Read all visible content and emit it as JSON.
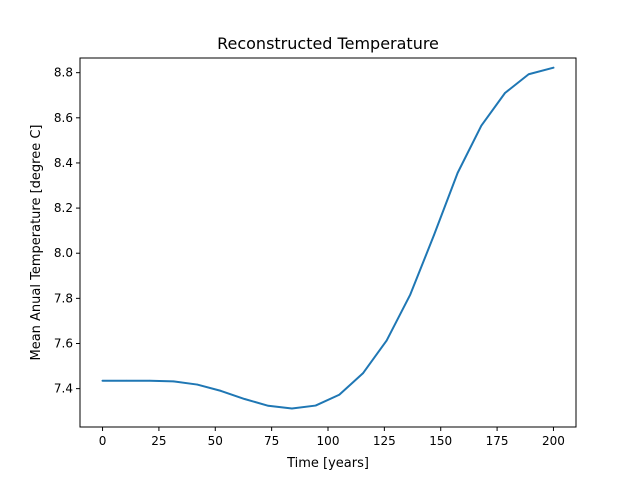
{
  "chart_data": {
    "type": "line",
    "title": "Reconstructed Temperature",
    "xlabel": "Time [years]",
    "ylabel": "Mean Anual Temperature [degree C]",
    "xlim": [
      -10,
      210
    ],
    "ylim": [
      7.23,
      8.865
    ],
    "xticks": [
      0,
      25,
      50,
      75,
      100,
      125,
      150,
      175,
      200
    ],
    "xtick_labels": [
      "0",
      "25",
      "50",
      "75",
      "100",
      "125",
      "150",
      "175",
      "200"
    ],
    "yticks": [
      7.4,
      7.6,
      7.8,
      8.0,
      8.2,
      8.4,
      8.6,
      8.8
    ],
    "ytick_labels": [
      "7.4",
      "7.6",
      "7.8",
      "8.0",
      "8.2",
      "8.4",
      "8.6",
      "8.8"
    ],
    "grid": false,
    "series": [
      {
        "color": "#1f77b4",
        "x": [
          0,
          10.5,
          21,
          31.5,
          42,
          52.5,
          63,
          73.5,
          84,
          94.5,
          105,
          115.5,
          126,
          136.5,
          147,
          157.5,
          168,
          178.5,
          189,
          200
        ],
        "y": [
          7.435,
          7.435,
          7.435,
          7.432,
          7.418,
          7.39,
          7.354,
          7.324,
          7.312,
          7.325,
          7.373,
          7.468,
          7.613,
          7.817,
          8.08,
          8.356,
          8.565,
          8.71,
          8.793,
          8.822
        ]
      }
    ]
  }
}
